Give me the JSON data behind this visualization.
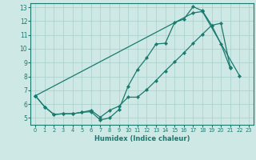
{
  "xlabel": "Humidex (Indice chaleur)",
  "xlim": [
    -0.5,
    23.5
  ],
  "ylim": [
    4.5,
    13.3
  ],
  "yticks": [
    5,
    6,
    7,
    8,
    9,
    10,
    11,
    12,
    13
  ],
  "xticks": [
    0,
    1,
    2,
    3,
    4,
    5,
    6,
    7,
    8,
    9,
    10,
    11,
    12,
    13,
    14,
    15,
    16,
    17,
    18,
    19,
    20,
    21,
    22,
    23
  ],
  "bg_color": "#cde8e5",
  "line_color": "#1a7a6e",
  "grid_color": "#aacfcc",
  "line1_x": [
    0,
    1,
    2,
    3,
    4,
    5,
    6,
    7,
    8,
    9,
    10,
    11,
    12,
    13,
    14,
    15,
    16,
    17,
    18,
    19,
    20,
    21
  ],
  "line1_y": [
    6.6,
    5.8,
    5.25,
    5.3,
    5.3,
    5.4,
    5.45,
    4.85,
    5.0,
    5.6,
    7.3,
    8.5,
    9.35,
    10.35,
    10.4,
    11.9,
    12.15,
    13.05,
    12.75,
    11.7,
    10.35,
    8.6
  ],
  "line2_x": [
    0,
    1,
    2,
    3,
    4,
    5,
    6,
    7,
    8,
    9,
    10,
    11,
    12,
    13,
    14,
    15,
    16,
    17,
    18,
    19,
    20,
    21
  ],
  "line2_y": [
    6.6,
    5.8,
    5.25,
    5.3,
    5.3,
    5.4,
    5.55,
    5.05,
    5.55,
    5.85,
    6.5,
    6.5,
    7.05,
    7.7,
    8.4,
    9.05,
    9.7,
    10.4,
    11.05,
    11.7,
    11.85,
    8.65
  ],
  "line3_x": [
    0,
    17,
    18,
    22
  ],
  "line3_y": [
    6.6,
    12.6,
    12.7,
    8.05
  ]
}
